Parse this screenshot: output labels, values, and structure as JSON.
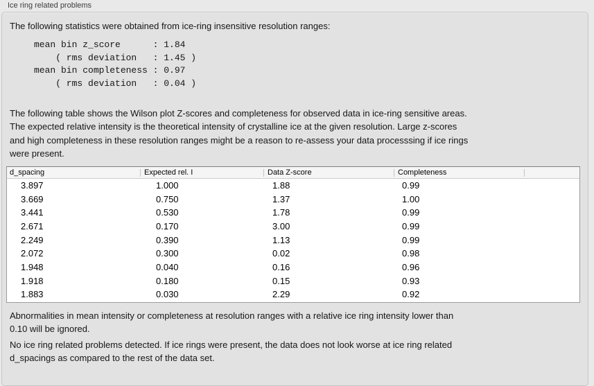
{
  "panel": {
    "title": "Ice ring related problems"
  },
  "intro_text": "The following statistics were obtained from ice-ring insensitive resolution ranges:",
  "stats_block": {
    "lines": [
      "mean bin z_score      : 1.84",
      "    ( rms deviation   : 1.45 )",
      "mean bin completeness : 0.97",
      "    ( rms deviation   : 0.04 )"
    ]
  },
  "table_description_lines": [
    "The following table shows the Wilson plot Z-scores and completeness for observed data in ice-ring sensitive areas.",
    "The expected relative intensity is the theoretical intensity of crystalline ice at the given resolution. Large z-scores",
    "and high completeness in these resolution ranges might be a reason to re-assess your data processsing if ice rings",
    "were present."
  ],
  "table": {
    "columns": [
      "d_spacing",
      "Expected rel. I",
      "Data Z-score",
      "Completeness"
    ],
    "rows": [
      [
        "3.897",
        "1.000",
        "1.88",
        "0.99"
      ],
      [
        "3.669",
        "0.750",
        "1.37",
        "1.00"
      ],
      [
        "3.441",
        "0.530",
        "1.78",
        "0.99"
      ],
      [
        "2.671",
        "0.170",
        "3.00",
        "0.99"
      ],
      [
        "2.249",
        "0.390",
        "1.13",
        "0.99"
      ],
      [
        "2.072",
        "0.300",
        "0.02",
        "0.98"
      ],
      [
        "1.948",
        "0.040",
        "0.16",
        "0.96"
      ],
      [
        "1.918",
        "0.180",
        "0.15",
        "0.93"
      ],
      [
        "1.883",
        "0.030",
        "2.29",
        "0.92"
      ]
    ]
  },
  "ignore_note_lines": [
    "Abnormalities in mean intensity or completeness at resolution ranges with a relative ice ring intensity lower than",
    "0.10 will be ignored."
  ],
  "conclusion_lines": [
    "No ice ring related problems detected. If ice rings were present, the data does not look worse at ice ring related",
    "d_spacings as compared to the rest of the data set."
  ]
}
